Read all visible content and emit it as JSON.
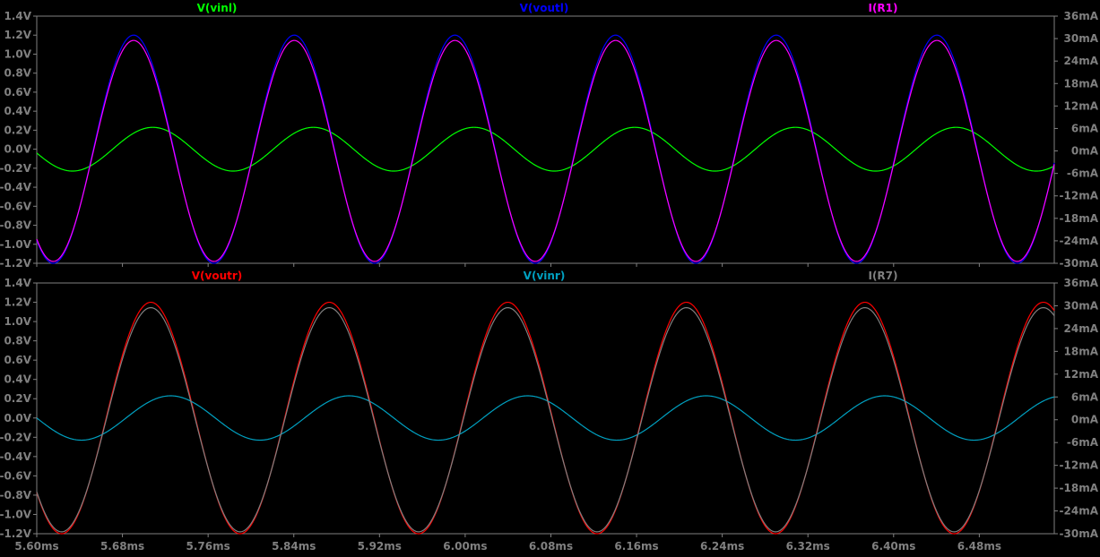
{
  "chart_data": [
    {
      "type": "line",
      "pane": "top",
      "legend": [
        {
          "label": "V(vinl)",
          "color": "#00ff00"
        },
        {
          "label": "V(voutl)",
          "color": "#0000ff"
        },
        {
          "label": "I(R1)",
          "color": "#ff00ff"
        }
      ],
      "left_axis": {
        "ylim": [
          -1.2,
          1.4
        ],
        "ticks": [
          {
            "value": 1.4,
            "label": "1.4V"
          },
          {
            "value": 1.2,
            "label": "1.2V"
          },
          {
            "value": 1.0,
            "label": "1.0V"
          },
          {
            "value": 0.8,
            "label": "0.8V"
          },
          {
            "value": 0.6,
            "label": "0.6V"
          },
          {
            "value": 0.4,
            "label": "0.4V"
          },
          {
            "value": 0.2,
            "label": "0.2V"
          },
          {
            "value": 0.0,
            "label": "0.0V"
          },
          {
            "value": -0.2,
            "label": "-0.2V"
          },
          {
            "value": -0.4,
            "label": "-0.4V"
          },
          {
            "value": -0.6,
            "label": "-0.6V"
          },
          {
            "value": -0.8,
            "label": "-0.8V"
          },
          {
            "value": -1.0,
            "label": "-1.0V"
          },
          {
            "value": -1.2,
            "label": "-1.2V"
          }
        ]
      },
      "right_axis": {
        "ylim": [
          -30,
          36
        ],
        "ticks": [
          {
            "value": 36,
            "label": "36mA"
          },
          {
            "value": 30,
            "label": "30mA"
          },
          {
            "value": 24,
            "label": "24mA"
          },
          {
            "value": 18,
            "label": "18mA"
          },
          {
            "value": 12,
            "label": "12mA"
          },
          {
            "value": 6,
            "label": "6mA"
          },
          {
            "value": 0,
            "label": "0mA"
          },
          {
            "value": -6,
            "label": "-6mA"
          },
          {
            "value": -12,
            "label": "-12mA"
          },
          {
            "value": -18,
            "label": "-18mA"
          },
          {
            "value": -24,
            "label": "-24mA"
          },
          {
            "value": -30,
            "label": "-30mA"
          }
        ]
      },
      "xlim": [
        5.6,
        6.55
      ],
      "series": [
        {
          "name": "V(vinl)",
          "axis": "left",
          "color": "#00ff00",
          "amplitude": 0.23,
          "frequency_khz": 6.667,
          "phase_deg": 190
        },
        {
          "name": "V(voutl)",
          "axis": "left",
          "color": "#0000ff",
          "amplitude": 1.2,
          "frequency_khz": 6.667,
          "phase_deg": 233
        },
        {
          "name": "I(R1)",
          "axis": "right",
          "color": "#ff00ff",
          "amplitude": 29.5,
          "frequency_khz": 6.667,
          "phase_deg": 233
        }
      ]
    },
    {
      "type": "line",
      "pane": "bottom",
      "legend": [
        {
          "label": "V(voutr)",
          "color": "#ff0000"
        },
        {
          "label": "V(vinr)",
          "color": "#00a0c0"
        },
        {
          "label": "I(R7)",
          "color": "#808080"
        }
      ],
      "left_axis": {
        "ylim": [
          -1.2,
          1.4
        ],
        "ticks": [
          {
            "value": 1.4,
            "label": "1.4V"
          },
          {
            "value": 1.2,
            "label": "1.2V"
          },
          {
            "value": 1.0,
            "label": "1.0V"
          },
          {
            "value": 0.8,
            "label": "0.8V"
          },
          {
            "value": 0.6,
            "label": "0.6V"
          },
          {
            "value": 0.4,
            "label": "0.4V"
          },
          {
            "value": 0.2,
            "label": "0.2V"
          },
          {
            "value": 0.0,
            "label": "0.0V"
          },
          {
            "value": -0.2,
            "label": "-0.2V"
          },
          {
            "value": -0.4,
            "label": "-0.4V"
          },
          {
            "value": -0.6,
            "label": "-0.6V"
          },
          {
            "value": -0.8,
            "label": "-0.8V"
          },
          {
            "value": -1.0,
            "label": "-1.0V"
          },
          {
            "value": -1.2,
            "label": "-1.2V"
          }
        ]
      },
      "right_axis": {
        "ylim": [
          -30,
          36
        ],
        "ticks": [
          {
            "value": 36,
            "label": "36mA"
          },
          {
            "value": 30,
            "label": "30mA"
          },
          {
            "value": 24,
            "label": "24mA"
          },
          {
            "value": 18,
            "label": "18mA"
          },
          {
            "value": 12,
            "label": "12mA"
          },
          {
            "value": 6,
            "label": "6mA"
          },
          {
            "value": 0,
            "label": "0mA"
          },
          {
            "value": -6,
            "label": "-6mA"
          },
          {
            "value": -12,
            "label": "-12mA"
          },
          {
            "value": -18,
            "label": "-18mA"
          },
          {
            "value": -24,
            "label": "-24mA"
          },
          {
            "value": -30,
            "label": "-30mA"
          }
        ]
      },
      "xlim": [
        5.6,
        6.55
      ],
      "x_ticks": [
        "5.60ms",
        "5.68ms",
        "5.76ms",
        "5.84ms",
        "5.92ms",
        "6.00ms",
        "6.08ms",
        "6.16ms",
        "6.24ms",
        "6.32ms",
        "6.40ms",
        "6.48ms"
      ],
      "series": [
        {
          "name": "V(voutr)",
          "axis": "left",
          "color": "#ff0000",
          "amplitude": 1.2,
          "frequency_khz": 6.0,
          "phase_deg": 220
        },
        {
          "name": "V(vinr)",
          "axis": "left",
          "color": "#00a0c0",
          "amplitude": 0.23,
          "frequency_khz": 6.0,
          "phase_deg": 180
        },
        {
          "name": "I(R7)",
          "axis": "right",
          "color": "#808080",
          "amplitude": 29.5,
          "frequency_khz": 6.0,
          "phase_deg": 220
        }
      ]
    }
  ]
}
